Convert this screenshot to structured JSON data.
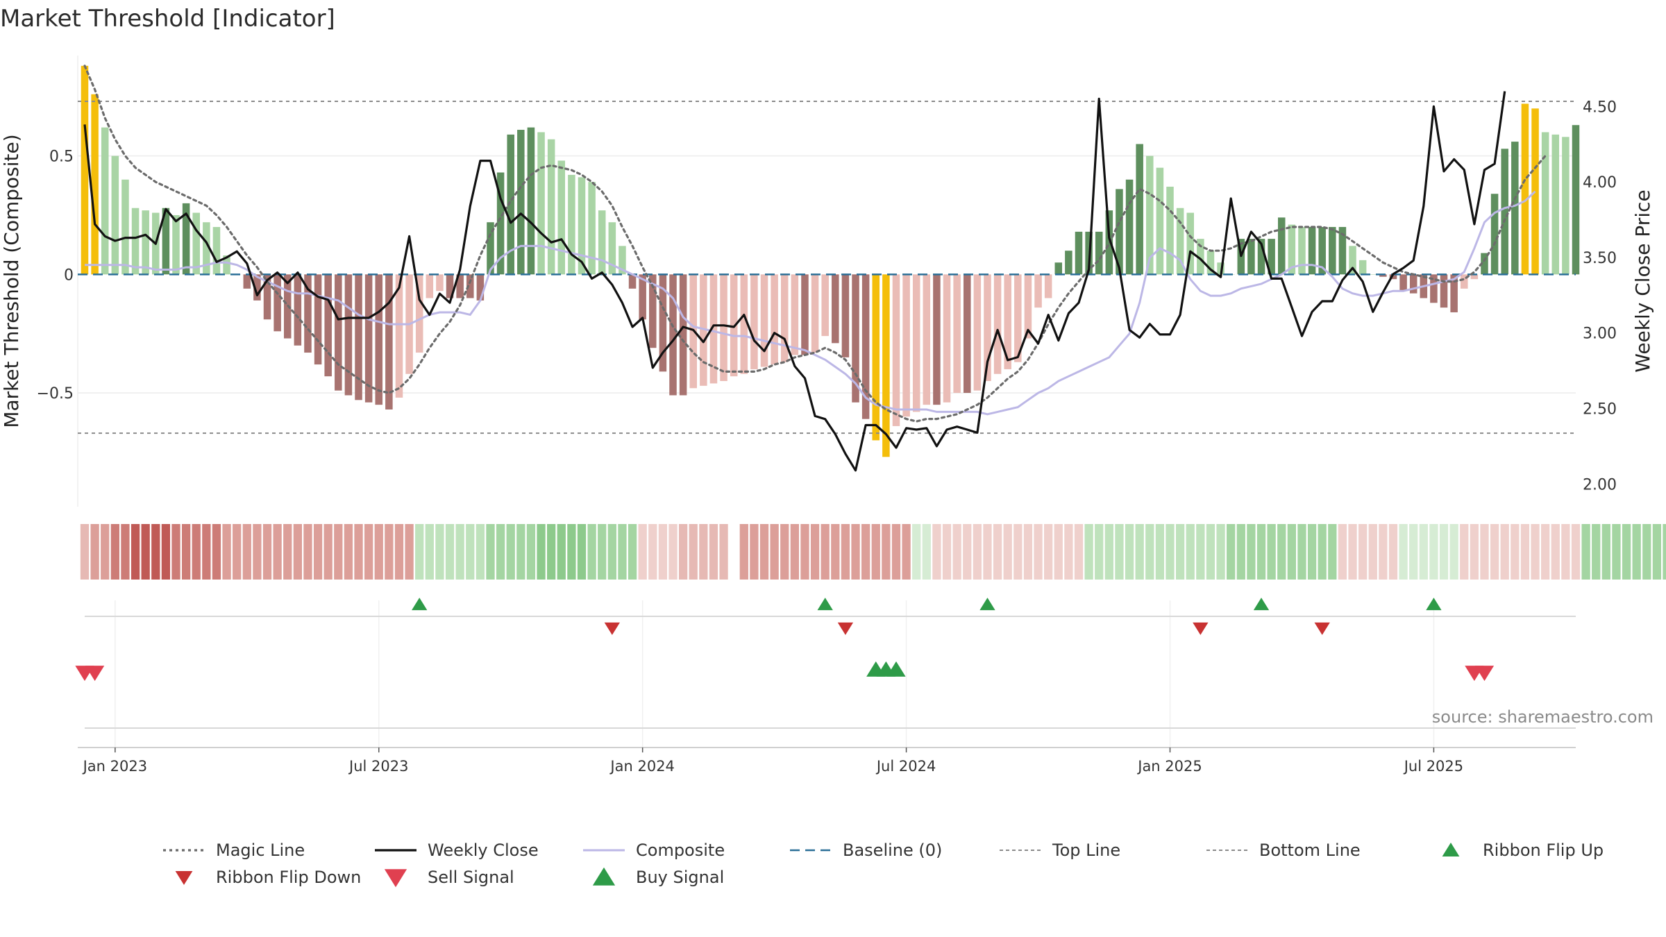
{
  "chart_data": {
    "type": "bar",
    "title": "Market Threshold [Indicator]",
    "ylabel": "Market Threshold (Composite)",
    "y2label": "Weekly Close Price",
    "ylim": [
      -0.98,
      0.9
    ],
    "y2lim": [
      1.85,
      4.8
    ],
    "yticks": [
      {
        "v": 0.5,
        "label": "0.5"
      },
      {
        "v": 0,
        "label": "0"
      },
      {
        "v": -0.5,
        "label": "−0.5"
      }
    ],
    "y2ticks": [
      {
        "v": 4.5,
        "label": "4.50"
      },
      {
        "v": 4.0,
        "label": "4.00"
      },
      {
        "v": 3.5,
        "label": "3.50"
      },
      {
        "v": 3.0,
        "label": "3.00"
      },
      {
        "v": 2.5,
        "label": "2.50"
      },
      {
        "v": 2.0,
        "label": "2.00"
      }
    ],
    "xticks": [
      {
        "i": 3,
        "label": "Jan 2023"
      },
      {
        "i": 29,
        "label": "Jul 2023"
      },
      {
        "i": 55,
        "label": "Jan 2024"
      },
      {
        "i": 81,
        "label": "Jul 2024"
      },
      {
        "i": 107,
        "label": "Jan 2025"
      },
      {
        "i": 133,
        "label": "Jul 2025"
      }
    ],
    "top_line": 0.73,
    "bottom_line": -0.67,
    "composite": [
      0.04,
      0.04,
      0.04,
      0.04,
      0.04,
      0.03,
      0.03,
      0.02,
      0.02,
      0.02,
      0.03,
      0.03,
      0.04,
      0.05,
      0.05,
      0.04,
      0.02,
      -0.01,
      -0.03,
      -0.05,
      -0.07,
      -0.08,
      -0.08,
      -0.09,
      -0.1,
      -0.11,
      -0.14,
      -0.17,
      -0.19,
      -0.2,
      -0.21,
      -0.21,
      -0.21,
      -0.19,
      -0.17,
      -0.16,
      -0.16,
      -0.16,
      -0.17,
      -0.11,
      0.02,
      0.07,
      0.1,
      0.12,
      0.12,
      0.12,
      0.11,
      0.1,
      0.09,
      0.08,
      0.07,
      0.06,
      0.04,
      0.02,
      0,
      -0.02,
      -0.04,
      -0.06,
      -0.1,
      -0.18,
      -0.22,
      -0.23,
      -0.24,
      -0.25,
      -0.26,
      -0.26,
      -0.27,
      -0.28,
      -0.29,
      -0.3,
      -0.31,
      -0.32,
      -0.34,
      -0.36,
      -0.39,
      -0.42,
      -0.46,
      -0.52,
      -0.55,
      -0.56,
      -0.57,
      -0.57,
      -0.57,
      -0.57,
      -0.58,
      -0.58,
      -0.58,
      -0.58,
      -0.58,
      -0.59,
      -0.58,
      -0.57,
      -0.56,
      -0.53,
      -0.5,
      -0.48,
      -0.45,
      -0.43,
      -0.41,
      -0.39,
      -0.37,
      -0.35,
      -0.3,
      -0.25,
      -0.12,
      0.07,
      0.11,
      0.09,
      0.06,
      -0.02,
      -0.07,
      -0.09,
      -0.09,
      -0.08,
      -0.06,
      -0.05,
      -0.04,
      -0.02,
      0,
      0.03,
      0.04,
      0.04,
      0.03,
      -0.01,
      -0.06,
      -0.08,
      -0.09,
      -0.09,
      -0.08,
      -0.07,
      -0.07,
      -0.06,
      -0.05,
      -0.04,
      -0.03,
      -0.02,
      0.01,
      0.11,
      0.22,
      0.26,
      0.28,
      0.29,
      0.31,
      0.35
    ],
    "magic_line": [
      0.88,
      0.78,
      0.66,
      0.57,
      0.5,
      0.45,
      0.42,
      0.39,
      0.37,
      0.35,
      0.33,
      0.31,
      0.29,
      0.25,
      0.2,
      0.14,
      0.08,
      0.03,
      -0.03,
      -0.08,
      -0.13,
      -0.18,
      -0.23,
      -0.28,
      -0.33,
      -0.38,
      -0.41,
      -0.44,
      -0.47,
      -0.49,
      -0.5,
      -0.48,
      -0.44,
      -0.38,
      -0.31,
      -0.25,
      -0.2,
      -0.13,
      -0.03,
      0.08,
      0.17,
      0.24,
      0.31,
      0.37,
      0.42,
      0.45,
      0.46,
      0.45,
      0.44,
      0.42,
      0.39,
      0.35,
      0.29,
      0.2,
      0.12,
      0.03,
      -0.05,
      -0.14,
      -0.22,
      -0.28,
      -0.33,
      -0.37,
      -0.39,
      -0.41,
      -0.41,
      -0.41,
      -0.41,
      -0.4,
      -0.38,
      -0.37,
      -0.35,
      -0.34,
      -0.33,
      -0.31,
      -0.33,
      -0.36,
      -0.42,
      -0.49,
      -0.54,
      -0.57,
      -0.59,
      -0.61,
      -0.62,
      -0.61,
      -0.61,
      -0.6,
      -0.59,
      -0.57,
      -0.55,
      -0.52,
      -0.48,
      -0.44,
      -0.41,
      -0.36,
      -0.29,
      -0.21,
      -0.14,
      -0.08,
      -0.03,
      0.02,
      0.06,
      0.13,
      0.22,
      0.3,
      0.36,
      0.34,
      0.31,
      0.27,
      0.22,
      0.16,
      0.12,
      0.1,
      0.1,
      0.11,
      0.13,
      0.14,
      0.16,
      0.18,
      0.19,
      0.2,
      0.2,
      0.2,
      0.2,
      0.19,
      0.17,
      0.14,
      0.11,
      0.08,
      0.05,
      0.03,
      0.01,
      0,
      -0.01,
      -0.02,
      -0.03,
      -0.03,
      -0.02,
      0.01,
      0.06,
      0.13,
      0.23,
      0.32,
      0.4,
      0.45,
      0.5
    ],
    "weekly_close": [
      4.38,
      3.72,
      3.64,
      3.61,
      3.63,
      3.63,
      3.65,
      3.59,
      3.82,
      3.74,
      3.79,
      3.68,
      3.6,
      3.47,
      3.5,
      3.54,
      3.46,
      3.25,
      3.35,
      3.4,
      3.33,
      3.4,
      3.29,
      3.24,
      3.22,
      3.09,
      3.1,
      3.1,
      3.1,
      3.14,
      3.2,
      3.3,
      3.64,
      3.22,
      3.12,
      3.26,
      3.2,
      3.42,
      3.84,
      4.14,
      4.14,
      3.89,
      3.73,
      3.79,
      3.73,
      3.66,
      3.6,
      3.62,
      3.52,
      3.47,
      3.36,
      3.4,
      3.32,
      3.2,
      3.04,
      3.1,
      2.77,
      2.87,
      2.95,
      3.04,
      3.02,
      2.94,
      3.05,
      3.05,
      3.04,
      3.12,
      2.95,
      2.88,
      3.0,
      2.96,
      2.78,
      2.7,
      2.45,
      2.43,
      2.33,
      2.2,
      2.09,
      2.39,
      2.39,
      2.33,
      2.24,
      2.37,
      2.36,
      2.37,
      2.25,
      2.36,
      2.38,
      2.36,
      2.34,
      2.81,
      3.02,
      2.82,
      2.84,
      3.02,
      2.93,
      3.12,
      2.95,
      3.13,
      3.2,
      3.42,
      4.55,
      3.63,
      3.43,
      3.02,
      2.97,
      3.06,
      2.99,
      2.99,
      3.12,
      3.54,
      3.49,
      3.42,
      3.37,
      3.89,
      3.51,
      3.67,
      3.59,
      3.36,
      3.36,
      3.17,
      2.98,
      3.14,
      3.21,
      3.21,
      3.35,
      3.43,
      3.34,
      3.14,
      3.27,
      3.39,
      3.43,
      3.48,
      3.84,
      4.5,
      4.07,
      4.15,
      4.08,
      3.72,
      4.08,
      4.12,
      4.6
    ],
    "histogram": [
      0.88,
      0.76,
      0.62,
      0.5,
      0.4,
      0.28,
      0.27,
      0.26,
      0.28,
      0.25,
      0.3,
      0.26,
      0.22,
      0.2,
      0.08,
      0,
      -0.06,
      -0.11,
      -0.19,
      -0.24,
      -0.27,
      -0.3,
      -0.33,
      -0.38,
      -0.43,
      -0.49,
      -0.51,
      -0.53,
      -0.54,
      -0.55,
      -0.57,
      -0.52,
      -0.42,
      -0.33,
      -0.1,
      -0.07,
      -0.1,
      -0.1,
      -0.1,
      -0.11,
      0.22,
      0.43,
      0.59,
      0.61,
      0.62,
      0.6,
      0.57,
      0.48,
      0.42,
      0.41,
      0.39,
      0.27,
      0.22,
      0.12,
      -0.06,
      -0.19,
      -0.31,
      -0.41,
      -0.51,
      -0.51,
      -0.48,
      -0.47,
      -0.46,
      -0.45,
      -0.43,
      -0.42,
      -0.4,
      -0.39,
      -0.38,
      -0.37,
      -0.34,
      -0.34,
      -0.33,
      -0.26,
      -0.29,
      -0.35,
      -0.54,
      -0.61,
      -0.7,
      -0.77,
      -0.64,
      -0.6,
      -0.58,
      -0.55,
      -0.55,
      -0.54,
      -0.5,
      -0.5,
      -0.49,
      -0.45,
      -0.42,
      -0.4,
      -0.37,
      -0.27,
      -0.14,
      -0.1,
      0.05,
      0.1,
      0.18,
      0.18,
      0.18,
      0.27,
      0.36,
      0.4,
      0.55,
      0.5,
      0.45,
      0.37,
      0.28,
      0.26,
      0.15,
      0.1,
      0.05,
      0,
      0.15,
      0.15,
      0.15,
      0.15,
      0.24,
      0.21,
      0.2,
      0.2,
      0.2,
      0.2,
      0.2,
      0.12,
      0.06,
      0,
      -0.01,
      -0.02,
      -0.07,
      -0.08,
      -0.1,
      -0.12,
      -0.14,
      -0.16,
      -0.06,
      -0.02,
      0.09,
      0.34,
      0.53,
      0.56,
      0.72,
      0.7,
      0.6,
      0.59,
      0.58,
      0.63
    ],
    "ribbon": [
      2,
      3,
      3,
      4,
      4,
      5,
      5,
      5,
      5,
      4,
      4,
      4,
      4,
      4,
      3,
      3,
      3,
      3,
      3,
      3,
      3,
      3,
      3,
      3,
      3,
      3,
      3,
      3,
      3,
      3,
      3,
      3,
      3,
      -2,
      -2,
      -2,
      -2,
      -2,
      -2,
      -2,
      -3,
      -3,
      -3,
      -3,
      -3,
      -4,
      -4,
      -4,
      -4,
      -4,
      -3,
      -3,
      -3,
      -3,
      -3,
      1,
      1,
      1,
      1,
      2,
      2,
      2,
      2,
      2,
      0,
      3,
      3,
      3,
      3,
      3,
      3,
      3,
      3,
      3,
      3,
      3,
      3,
      3,
      3,
      3,
      3,
      3,
      -1,
      -1,
      1,
      1,
      1,
      1,
      1,
      1,
      1,
      1,
      1,
      1,
      1,
      1,
      1,
      1,
      1,
      -2,
      -2,
      -2,
      -2,
      -2,
      -2,
      -2,
      -2,
      -2,
      -2,
      -2,
      -2,
      -2,
      -2,
      -3,
      -3,
      -3,
      -3,
      -3,
      -3,
      -3,
      -3,
      -3,
      -3,
      -3,
      1,
      1,
      1,
      1,
      1,
      1,
      -1,
      -1,
      -1,
      -1,
      -1,
      -1,
      1,
      1,
      1,
      1,
      1,
      1,
      1,
      1,
      1,
      1,
      1,
      1,
      -3,
      -3,
      -3,
      -3,
      -3,
      -3,
      -3,
      -3,
      -3
    ],
    "ribbon_flip_up": [
      33,
      73,
      89,
      116,
      133
    ],
    "ribbon_flip_down": [
      52,
      75,
      110,
      122
    ],
    "sell_signal": [
      0,
      1,
      137,
      138
    ],
    "buy_signal": [
      78,
      79,
      80
    ],
    "colors": {
      "bull_strong": "#5e8f5e",
      "bull_weak": "#a9d4a5",
      "bear_strong": "#a87370",
      "bear_weak": "#eabcb6",
      "extreme": "#f4be0b",
      "magic": "#6b6b6b",
      "close": "#111111",
      "composite": "#bcb7e6",
      "baseline": "#2a6f97",
      "flip_up": "#2e9b48",
      "flip_down": "#c83232",
      "sell": "#e04050",
      "buy": "#2e9b48"
    },
    "legend": [
      {
        "key": "magic",
        "label": "Magic Line"
      },
      {
        "key": "close",
        "label": "Weekly Close"
      },
      {
        "key": "composite",
        "label": "Composite"
      },
      {
        "key": "baseline",
        "label": "Baseline (0)"
      },
      {
        "key": "top",
        "label": "Top Line"
      },
      {
        "key": "bottom",
        "label": "Bottom Line"
      },
      {
        "key": "flip_up",
        "label": "Ribbon Flip Up"
      },
      {
        "key": "flip_down",
        "label": "Ribbon Flip Down"
      },
      {
        "key": "sell",
        "label": "Sell Signal"
      },
      {
        "key": "buy",
        "label": "Buy Signal"
      }
    ],
    "source": "source: sharemaestro.com"
  }
}
